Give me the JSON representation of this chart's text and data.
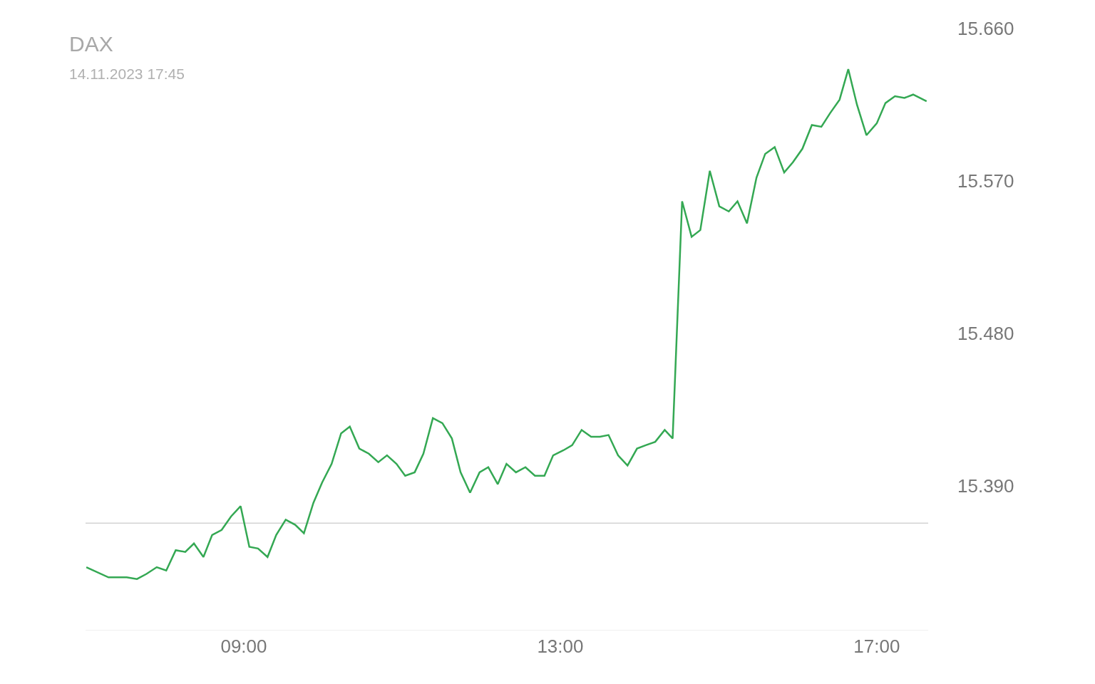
{
  "chart_data": {
    "type": "line",
    "title": "DAX",
    "subtitle": "14.11.2023 17:45",
    "x": [
      7.01,
      7.29,
      7.52,
      7.65,
      7.77,
      7.9,
      8.02,
      8.14,
      8.26,
      8.37,
      8.49,
      8.6,
      8.72,
      8.84,
      8.96,
      9.07,
      9.18,
      9.3,
      9.41,
      9.53,
      9.65,
      9.76,
      9.88,
      9.99,
      10.11,
      10.23,
      10.34,
      10.46,
      10.58,
      10.7,
      10.81,
      10.93,
      11.04,
      11.16,
      11.27,
      11.39,
      11.51,
      11.63,
      11.74,
      11.86,
      11.98,
      12.09,
      12.21,
      12.32,
      12.44,
      12.56,
      12.68,
      12.8,
      12.91,
      13.04,
      13.15,
      13.27,
      13.39,
      13.5,
      13.61,
      13.73,
      13.85,
      13.97,
      14.08,
      14.2,
      14.32,
      14.42,
      14.54,
      14.66,
      14.77,
      14.89,
      15.01,
      15.13,
      15.24,
      15.36,
      15.48,
      15.59,
      15.71,
      15.83,
      15.94,
      16.06,
      16.18,
      16.3,
      16.41,
      16.53,
      16.64,
      16.75,
      16.87,
      17.0,
      17.11,
      17.23,
      17.35,
      17.46,
      17.63
    ],
    "series": [
      {
        "color": "#34a853",
        "values": [
          15342,
          15336,
          15336,
          15335,
          15338,
          15342,
          15340,
          15352,
          15351,
          15356,
          15348,
          15361,
          15364,
          15372,
          15378,
          15354,
          15353,
          15348,
          15361,
          15370,
          15367,
          15362,
          15380,
          15392,
          15403,
          15421,
          15425,
          15412,
          15409,
          15404,
          15408,
          15403,
          15396,
          15398,
          15409,
          15430,
          15427,
          15418,
          15398,
          15386,
          15398,
          15401,
          15391,
          15403,
          15398,
          15401,
          15396,
          15396,
          15408,
          15411,
          15414,
          15423,
          15419,
          15419,
          15420,
          15408,
          15402,
          15412,
          15414,
          15416,
          15423,
          15418,
          15558,
          15537,
          15541,
          15576,
          15555,
          15552,
          15558,
          15545,
          15572,
          15586,
          15590,
          15575,
          15581,
          15589,
          15603,
          15602,
          15610,
          15618,
          15636,
          15615,
          15597,
          15604,
          15616,
          15620,
          15619,
          15621,
          15617
        ]
      }
    ],
    "xlim": [
      7.0,
      17.65
    ],
    "xticks": [
      {
        "value": 9,
        "label": "09:00"
      },
      {
        "value": 13,
        "label": "13:00"
      },
      {
        "value": 17,
        "label": "17:00"
      }
    ],
    "ylim": [
      15305,
      15660
    ],
    "yticks": [
      {
        "value": 15390,
        "label": "15.390"
      },
      {
        "value": 15480,
        "label": "15.480"
      },
      {
        "value": 15570,
        "label": "15.570"
      },
      {
        "value": 15660,
        "label": "15.660"
      }
    ],
    "ref_lines": [
      {
        "axis": "y",
        "value": 15368,
        "color": "#d3d3d3"
      }
    ],
    "grid": false,
    "marker": "none",
    "line_style": "solid"
  }
}
